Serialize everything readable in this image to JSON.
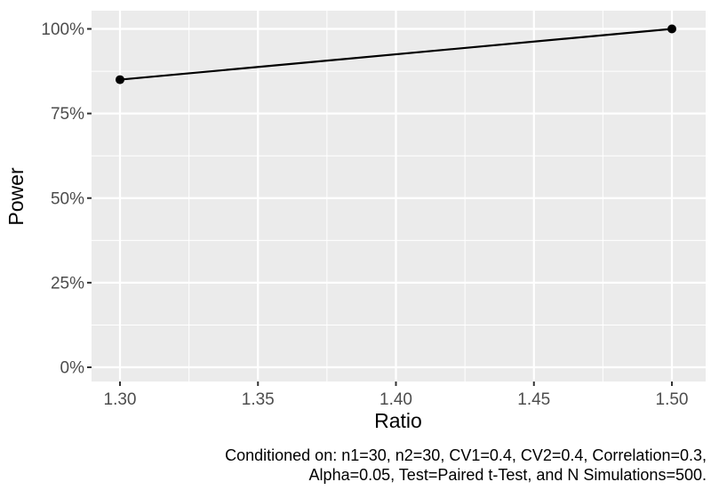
{
  "chart_data": {
    "type": "line",
    "title": "",
    "xlabel": "Ratio",
    "ylabel": "Power",
    "series": [
      {
        "name": "Power",
        "x": [
          1.3,
          1.5
        ],
        "y": [
          85,
          100
        ]
      }
    ],
    "xlim": [
      1.3,
      1.5
    ],
    "ylim": [
      0,
      100
    ],
    "y_unit": "percent",
    "x_ticks": {
      "values": [
        1.3,
        1.35,
        1.4,
        1.45,
        1.5
      ],
      "labels": [
        "1.30",
        "1.35",
        "1.40",
        "1.45",
        "1.50"
      ]
    },
    "y_ticks": {
      "values": [
        0,
        25,
        50,
        75,
        100
      ],
      "labels": [
        "0%",
        "25%",
        "50%",
        "75%",
        "100%"
      ]
    },
    "x_minor_gridlines": [
      1.325,
      1.375,
      1.425,
      1.475
    ],
    "y_minor_gridlines": [
      12.5,
      37.5,
      62.5,
      87.5
    ],
    "grid": "major-and-minor",
    "legend": "none",
    "style": "ggplot2-grey-theme",
    "colors": {
      "background": "#FFFFFF",
      "panel_bg": "#EBEBEB",
      "grid": "#FFFFFF",
      "line": "#000000",
      "point": "#000000",
      "axis_text": "#4D4D4D",
      "axis_title": "#000000",
      "tick_mark": "#333333",
      "caption_text": "#000000"
    },
    "caption": [
      "Conditioned on: n1=30, n2=30, CV1=0.4, CV2=0.4, Correlation=0.3,",
      "Alpha=0.05, Test=Paired t-Test, and N Simulations=500."
    ]
  }
}
